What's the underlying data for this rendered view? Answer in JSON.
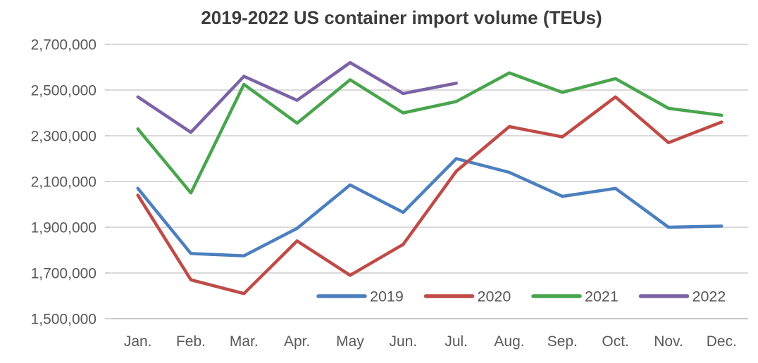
{
  "chart_data": {
    "type": "line",
    "title": "2019-2022 US container import volume (TEUs)",
    "categories": [
      "Jan.",
      "Feb.",
      "Mar.",
      "Apr.",
      "May",
      "Jun.",
      "Jul.",
      "Aug.",
      "Sep.",
      "Oct.",
      "Nov.",
      "Dec."
    ],
    "series": [
      {
        "name": "2019",
        "color": "#4C7FBE",
        "values": [
          2070000,
          1785000,
          1775000,
          1895000,
          2085000,
          1965000,
          2200000,
          2140000,
          2035000,
          2070000,
          1900000,
          1905000
        ]
      },
      {
        "name": "2020",
        "color": "#BF4B47",
        "values": [
          2040000,
          1670000,
          1610000,
          1840000,
          1690000,
          1825000,
          2145000,
          2340000,
          2295000,
          2470000,
          2270000,
          2360000
        ]
      },
      {
        "name": "2021",
        "color": "#49A54D",
        "values": [
          2330000,
          2050000,
          2525000,
          2355000,
          2545000,
          2400000,
          2450000,
          2575000,
          2490000,
          2550000,
          2420000,
          2390000
        ]
      },
      {
        "name": "2022",
        "color": "#7C62A6",
        "values": [
          2470000,
          2315000,
          2560000,
          2455000,
          2620000,
          2485000,
          2530000,
          null,
          null,
          null,
          null,
          null
        ]
      }
    ],
    "y_axis": {
      "min": 1500000,
      "max": 2700000,
      "step": 200000,
      "tick_labels": [
        "1,500,000",
        "1,700,000",
        "1,900,000",
        "2,100,000",
        "2,300,000",
        "2,500,000",
        "2,700,000"
      ]
    },
    "x_axis_label": "",
    "y_axis_label": "",
    "grid": true,
    "legend_position": "inside-bottom",
    "colors": {
      "grid_line": "#D9D9D9",
      "axis_line": "#C8C8C8",
      "tick_mark": "#C6C6C6",
      "axis_text": "#595959",
      "title_text": "#3C3C3C",
      "background": "#FFFFFF"
    }
  }
}
